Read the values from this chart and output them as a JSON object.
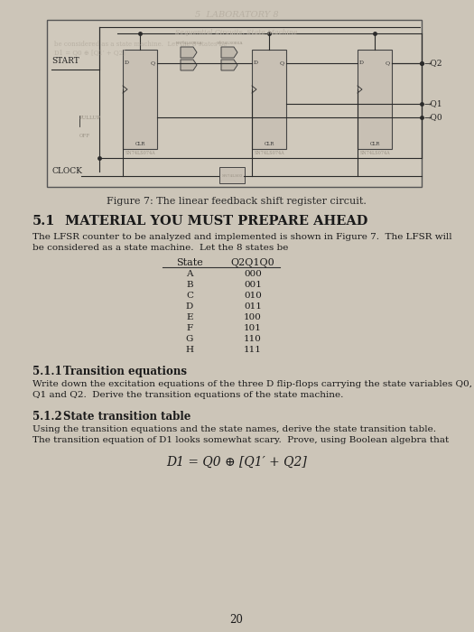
{
  "bg_color": "#ccc5b8",
  "circuit_bg": "#d0c9bc",
  "fig_caption": "Figure 7: The linear feedback shift register circuit.",
  "section_51_num": "5.1",
  "section_51_title": "MATERIAL YOU MUST PREPARE AHEAD",
  "para_51_line1": "The LFSR counter to be analyzed and implemented is shown in Figure 7.  The LFSR will",
  "para_51_line2": "be considered as a state machine.  Let the 8 states be",
  "table_header": [
    "State",
    "Q2Q1Q0"
  ],
  "table_rows": [
    [
      "A",
      "000"
    ],
    [
      "B",
      "001"
    ],
    [
      "C",
      "010"
    ],
    [
      "D",
      "011"
    ],
    [
      "E",
      "100"
    ],
    [
      "F",
      "101"
    ],
    [
      "G",
      "110"
    ],
    [
      "H",
      "111"
    ]
  ],
  "section_511_num": "5.1.1",
  "section_511_title": "Transition equations",
  "para_511_line1": "Write down the excitation equations of the three D flip-flops carrying the state variables Q0,",
  "para_511_line2": "Q1 and Q2.  Derive the transition equations of the state machine.",
  "section_512_num": "5.1.2",
  "section_512_title": "State transition table",
  "para_512_line1": "Using the transition equations and the state names, derive the state transition table.",
  "para_512_line2": "The transition equation of D1 looks somewhat scary.  Prove, using Boolean algebra that",
  "equation": "D1 = Q0 ⊕ [Q1′ + Q2]",
  "page_number": "20",
  "wire_color": "#2a2a2a",
  "text_color": "#1a1a1a",
  "faint_color": "#9a9285",
  "bleed_color": "#b8b0a3"
}
